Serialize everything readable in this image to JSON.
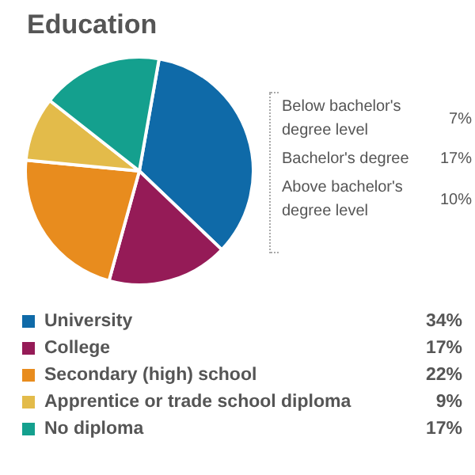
{
  "chart_data": {
    "type": "pie",
    "title": "Education",
    "categories": [
      "University",
      "College",
      "Secondary (high) school",
      "Apprentice or trade school diploma",
      "No diploma"
    ],
    "values": [
      34,
      17,
      22,
      9,
      17
    ],
    "colors": [
      "#0f6aa8",
      "#951b57",
      "#e88c1e",
      "#e3bb4a",
      "#14a08e"
    ],
    "value_labels": [
      "34%",
      "17%",
      "22%",
      "9%",
      "17%"
    ],
    "legend": "bottom",
    "annotations": [
      "Below bachelor's degree level",
      "7%",
      "Bachelor's degree",
      "17%",
      "Above bachelor's degree level",
      "10%"
    ]
  }
}
